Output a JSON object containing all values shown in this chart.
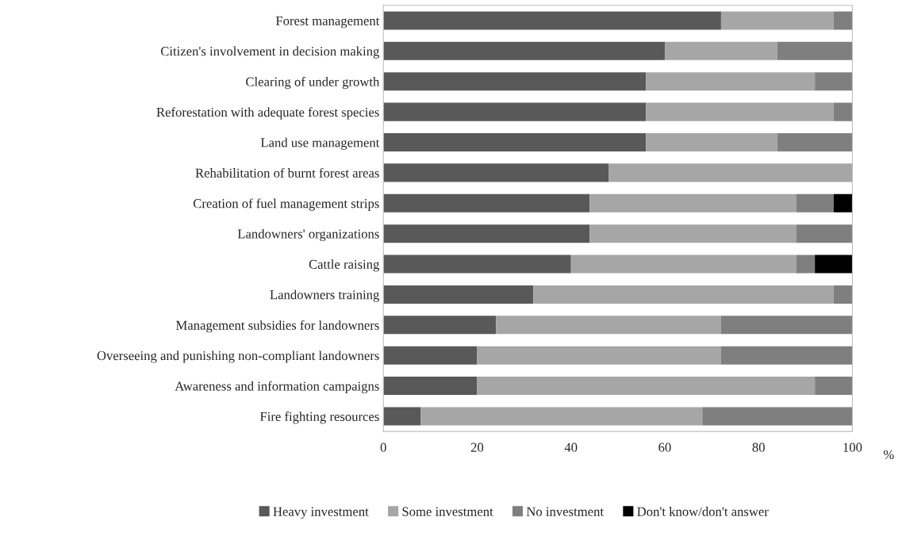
{
  "chart_data": {
    "type": "bar",
    "orientation": "horizontal",
    "stacked": true,
    "categories": [
      "Forest management",
      "Citizen's involvement in decision making",
      "Clearing of under growth",
      "Reforestation with adequate forest species",
      "Land use management",
      "Rehabilitation of burnt forest areas",
      "Creation of fuel management strips",
      "Landowners' organizations",
      "Cattle raising",
      "Landowners training",
      "Management subsidies for landowners",
      "Overseeing and punishing non-compliant landowners",
      "Awareness and information campaigns",
      "Fire fighting resources"
    ],
    "series": [
      {
        "name": "Heavy investment",
        "color": "#595959",
        "values": [
          72,
          60,
          56,
          56,
          56,
          48,
          44,
          44,
          40,
          32,
          24,
          20,
          20,
          8
        ]
      },
      {
        "name": "Some investment",
        "color": "#a6a6a6",
        "values": [
          24,
          24,
          36,
          40,
          28,
          52,
          44,
          44,
          48,
          64,
          48,
          52,
          72,
          60
        ]
      },
      {
        "name": "No investment",
        "color": "#7f7f7f",
        "values": [
          4,
          16,
          8,
          4,
          16,
          0,
          8,
          12,
          4,
          4,
          28,
          28,
          8,
          32
        ]
      },
      {
        "name": "Don't know/don't answer",
        "color": "#000000",
        "values": [
          0,
          0,
          0,
          0,
          0,
          0,
          4,
          0,
          8,
          0,
          0,
          0,
          0,
          0
        ]
      }
    ],
    "xlim": [
      0,
      100
    ],
    "xticks": [
      0,
      20,
      40,
      60,
      80,
      100
    ],
    "xlabel": "%",
    "grid": false,
    "legend": "bottom"
  }
}
